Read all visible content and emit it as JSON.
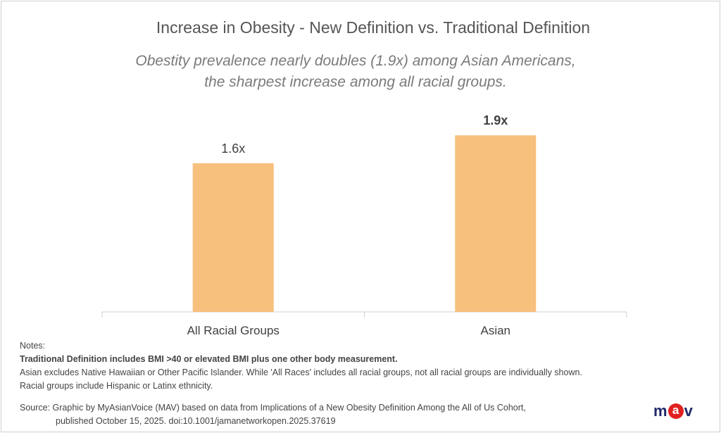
{
  "chart_data": {
    "type": "bar",
    "title": "Increase in Obesity -  New Definition vs. Traditional Definition",
    "subtitle": [
      "Obestity prevalence nearly doubles (1.9x) among  Asian Americans,",
      "the sharpest increase among all racial groups."
    ],
    "categories": [
      "All Racial Groups",
      "Asian"
    ],
    "values": [
      1.6,
      1.9
    ],
    "data_labels": [
      "1.6x",
      "1.9x"
    ],
    "xlabel": "",
    "ylabel": "",
    "ylim": [
      0,
      2.3
    ],
    "grid": false,
    "bar_color": "#F8C07D"
  },
  "notes": {
    "heading": "Notes:",
    "bold_line": "Traditional Definition includes BMI >40 or elevated BMI plus one other body measurement.",
    "line2": "Asian excludes Native Hawaiian or Other Pacific Islander.  While 'All Races' includes all racial groups, not all racial groups are individually shown.",
    "line3": "Racial groups include Hispanic or Latinx ethnicity."
  },
  "source": {
    "line1": "Source: Graphic by MyAsianVoice (MAV) based on data from Implications of a New Obesity Definition Among the All of Us Cohort,",
    "line2": "published October 15, 2025. doi:10.1001/jamanetworkopen.2025.37619"
  },
  "logo": {
    "text": "mav",
    "m": "m",
    "a": "a",
    "v": "v",
    "brand_blue": "#1F2A6B",
    "brand_red": "#E02020"
  }
}
